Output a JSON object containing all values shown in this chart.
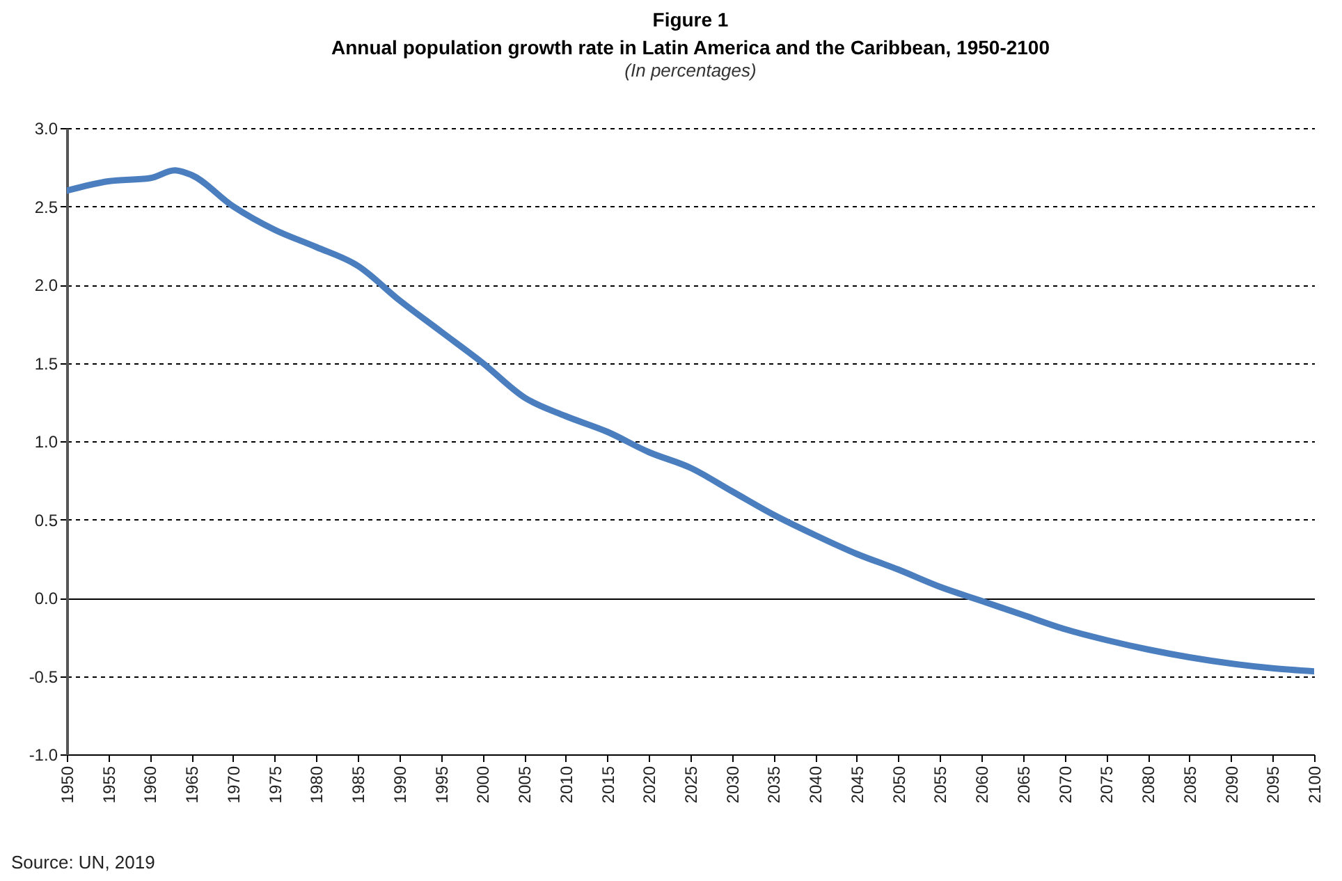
{
  "chart_data": {
    "type": "line",
    "title": "Figure 1\nAnnual population growth rate in Latin America and the Caribbean, 1950-2100",
    "subtitle": "(In percentages)",
    "annotations": [
      "Source: UN, 2019"
    ],
    "x": [
      1950,
      1955,
      1960,
      1963,
      1965,
      1970,
      1975,
      1980,
      1985,
      1990,
      1995,
      2000,
      2005,
      2010,
      2015,
      2020,
      2025,
      2030,
      2035,
      2040,
      2045,
      2050,
      2055,
      2060,
      2065,
      2070,
      2075,
      2080,
      2085,
      2090,
      2095,
      2100
    ],
    "series": [
      {
        "color": "#4a7ebf",
        "values": [
          2.6,
          2.66,
          2.68,
          2.73,
          2.7,
          2.5,
          2.35,
          2.24,
          2.12,
          1.9,
          1.7,
          1.5,
          1.28,
          1.16,
          1.06,
          0.93,
          0.83,
          0.68,
          0.53,
          0.4,
          0.28,
          0.18,
          0.07,
          -0.02,
          -0.11,
          -0.2,
          -0.27,
          -0.33,
          -0.38,
          -0.42,
          -0.45,
          -0.47
        ]
      }
    ],
    "xlim": [
      1950,
      2100
    ],
    "xticks": [
      1950,
      1955,
      1960,
      1965,
      1970,
      1975,
      1980,
      1985,
      1990,
      1995,
      2000,
      2005,
      2010,
      2015,
      2020,
      2025,
      2030,
      2035,
      2040,
      2045,
      2050,
      2055,
      2060,
      2065,
      2070,
      2075,
      2080,
      2085,
      2090,
      2095,
      2100
    ],
    "ylim": [
      -1.0,
      3.0
    ],
    "yticks": [
      {
        "value": -1,
        "label": "-1.0"
      },
      {
        "value": -0.5,
        "label": "-0.5"
      },
      {
        "value": 0,
        "label": "0.0"
      },
      {
        "value": 0.5,
        "label": "0.5"
      },
      {
        "value": 1,
        "label": "1.0"
      },
      {
        "value": 1.5,
        "label": "1.5"
      },
      {
        "value": 2,
        "label": "2.0"
      },
      {
        "value": 2.5,
        "label": "2.5"
      },
      {
        "value": 3,
        "label": "3.0"
      }
    ],
    "grid": "y",
    "line_style": "solid",
    "marker": "none"
  }
}
